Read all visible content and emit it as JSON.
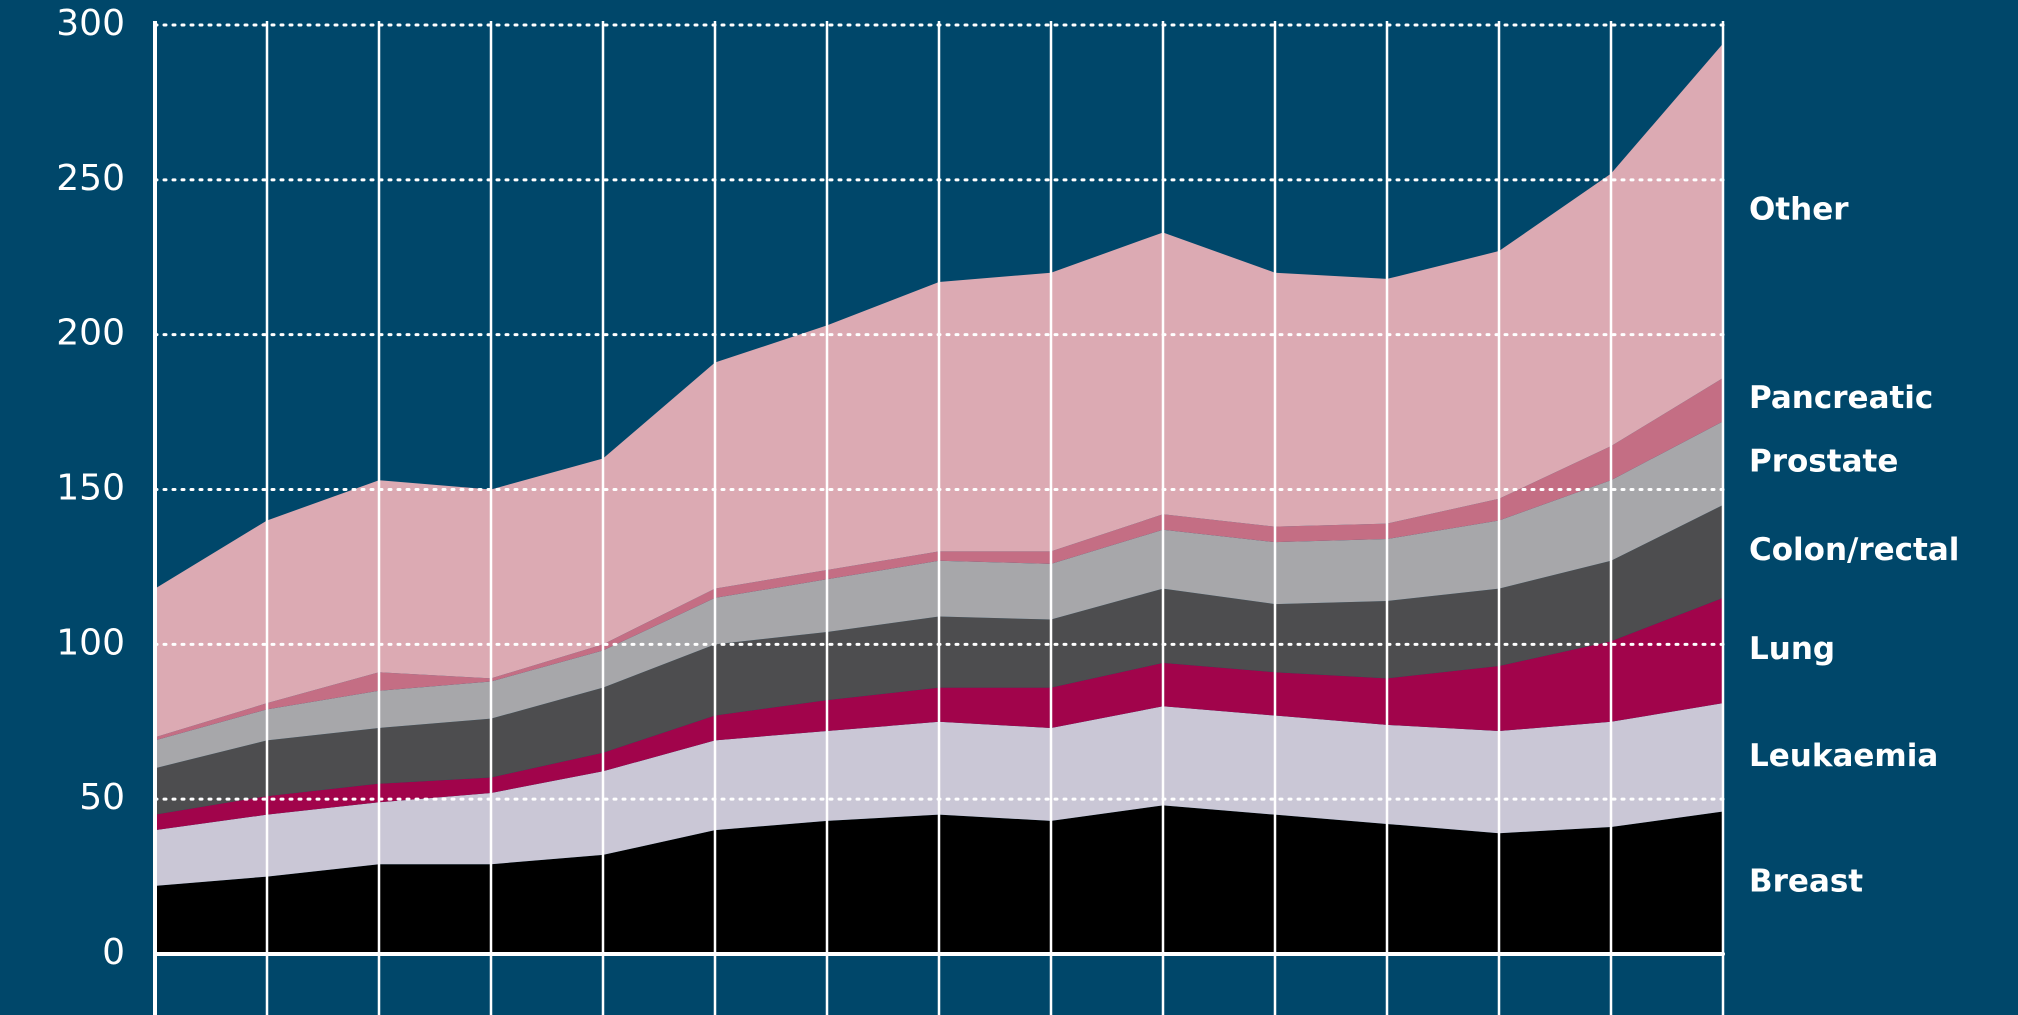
{
  "chart_data": {
    "type": "stacked_area",
    "categories": [
      null,
      null,
      null,
      null,
      null,
      null,
      null,
      null,
      null,
      null,
      null,
      null,
      null,
      null,
      null
    ],
    "series": [
      {
        "name": "Breast",
        "color": "#000000",
        "values": [
          22,
          25,
          29,
          29,
          32,
          40,
          43,
          45,
          43,
          48,
          45,
          42,
          39,
          41,
          46
        ]
      },
      {
        "name": "Leukaemia",
        "color": "#cac7d6",
        "values": [
          18,
          20,
          20,
          23,
          27,
          29,
          29,
          30,
          30,
          32,
          32,
          32,
          33,
          34,
          35
        ]
      },
      {
        "name": "Lung",
        "color": "#a1044b",
        "values": [
          5,
          6,
          6,
          5,
          6,
          8,
          10,
          11,
          13,
          14,
          14,
          15,
          21,
          26,
          34
        ]
      },
      {
        "name": "Colon/rectal",
        "color": "#4d4d4f",
        "values": [
          15,
          18,
          18,
          19,
          21,
          23,
          22,
          23,
          22,
          24,
          22,
          25,
          25,
          26,
          30
        ]
      },
      {
        "name": "Prostate",
        "color": "#a7a7aa",
        "values": [
          9,
          10,
          12,
          12,
          12,
          15,
          17,
          18,
          18,
          19,
          20,
          20,
          22,
          26,
          27
        ]
      },
      {
        "name": "Pancreatic",
        "color": "#c46e84",
        "values": [
          1,
          2,
          6,
          1,
          2,
          3,
          3,
          3,
          4,
          5,
          5,
          5,
          7,
          11,
          14
        ]
      },
      {
        "name": "Other",
        "color": "#dcaab3",
        "values": [
          48,
          59,
          62,
          61,
          60,
          73,
          79,
          87,
          90,
          91,
          82,
          79,
          80,
          88,
          108
        ]
      }
    ],
    "ylim": [
      0,
      300
    ],
    "yticks": [
      0,
      50,
      100,
      150,
      200,
      250,
      300
    ],
    "grid": true
  }
}
